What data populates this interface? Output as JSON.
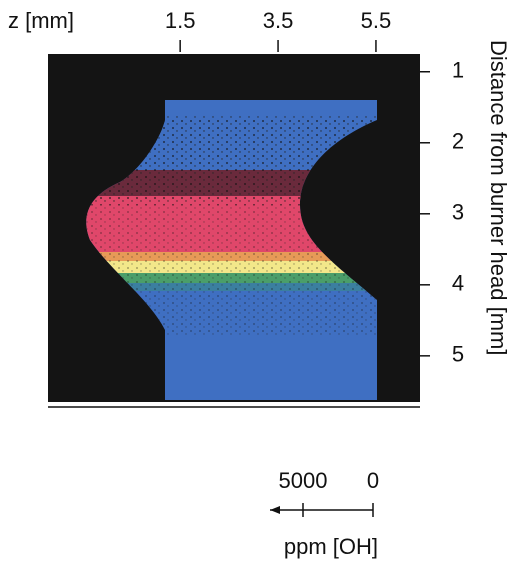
{
  "chart_data": {
    "type": "image",
    "xlabel": "z [mm]",
    "xlim": [
      -1.2,
      6.4
    ],
    "xticks": [
      1.5,
      3.5,
      5.5
    ],
    "ylabel": "Distance from burner head [mm]",
    "ylim": [
      0.75,
      5.65
    ],
    "yticks": [
      1,
      2,
      3,
      4,
      5
    ],
    "scale": {
      "label": "ppm [OH]",
      "ticks": [
        5000,
        0
      ]
    }
  }
}
